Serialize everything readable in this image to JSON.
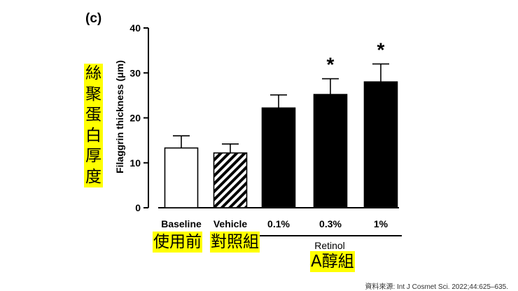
{
  "panel_label": "(c)",
  "chart_data": {
    "type": "bar",
    "ylabel": "Filaggrin thickness (μm)",
    "ylim": [
      0,
      40
    ],
    "yticks": [
      0,
      10,
      20,
      30,
      40
    ],
    "categories": [
      "Baseline",
      "Vehicle",
      "0.1%",
      "0.3%",
      "1%"
    ],
    "values": [
      13.3,
      12.2,
      22.2,
      25.2,
      28.0
    ],
    "error_up": [
      16.0,
      14.2,
      25.1,
      28.7,
      32.0
    ],
    "fill_styles": [
      "open",
      "hatched",
      "solid",
      "solid",
      "solid"
    ],
    "significance": [
      "",
      "",
      "",
      "*",
      "*"
    ],
    "group_label": "Retinol",
    "group_categories": [
      2,
      4
    ]
  },
  "annotations": {
    "ylabel_cn": [
      "絲",
      "聚",
      "蛋",
      "白",
      "厚",
      "度"
    ],
    "before_cn": "使用前",
    "vehicle_cn": "對照組",
    "retinol_cn": "A醇組"
  },
  "source": "資料來源: Int J Cosmet Sci. 2022;44:625–635."
}
